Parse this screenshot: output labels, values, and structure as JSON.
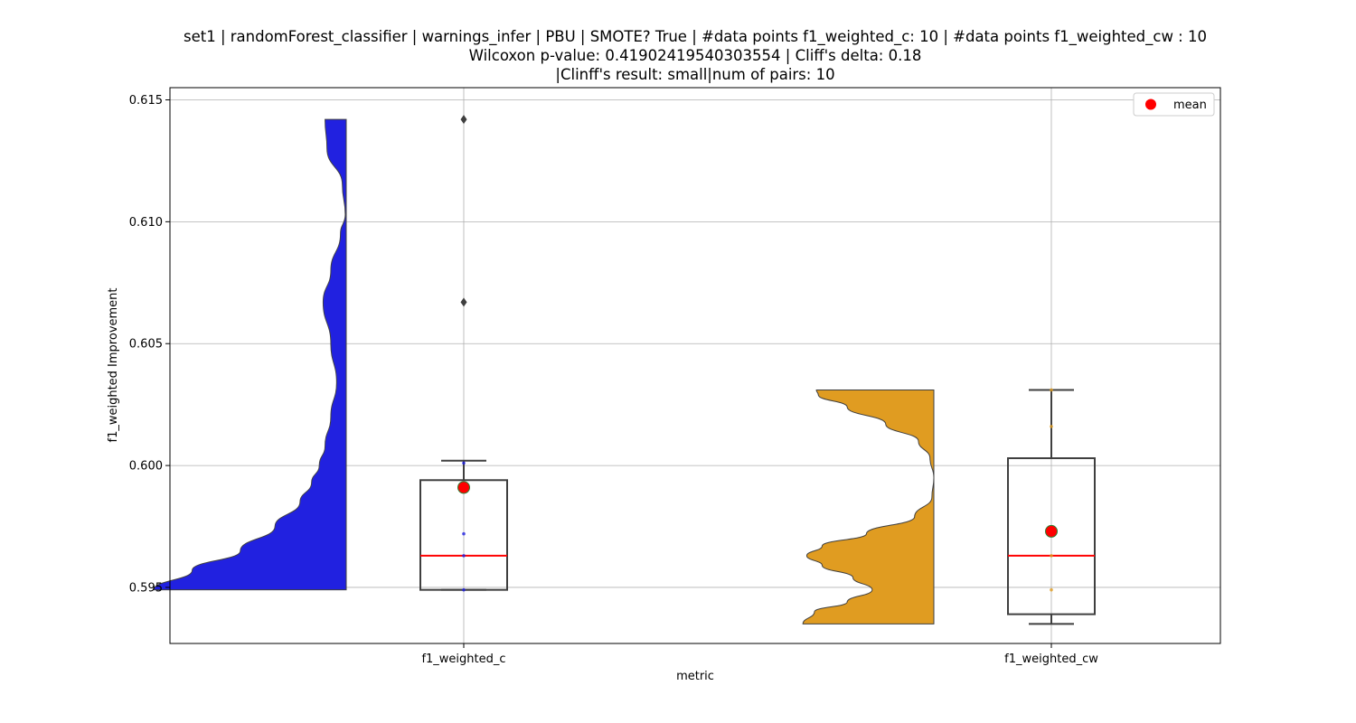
{
  "chart_data": {
    "type": "violin-box",
    "title_lines": [
      "set1 | randomForest_classifier | warnings_infer | PBU | SMOTE? True | #data points f1_weighted_c: 10 | #data points f1_weighted_cw : 10",
      "Wilcoxon p-value: 0.41902419540303554 | Cliff's delta: 0.18",
      "|Clinff's result: small|num of pairs: 10"
    ],
    "xlabel": "metric",
    "ylabel": "f1_weighted Improvement",
    "ylim": [
      0.5927,
      0.6155
    ],
    "yticks": [
      "0.595",
      "0.600",
      "0.605",
      "0.610",
      "0.615"
    ],
    "ytick_values": [
      0.595,
      0.6,
      0.605,
      0.61,
      0.615
    ],
    "grid": true,
    "legend": {
      "position": "top-right",
      "entries": [
        {
          "label": "mean",
          "color": "#ff0000"
        }
      ]
    },
    "categories": [
      "f1_weighted_c",
      "f1_weighted_cw"
    ],
    "series": [
      {
        "category": "f1_weighted_c",
        "violin_color": "#2121e0",
        "violin_range": [
          0.5949,
          0.6142
        ],
        "violin_density": [
          [
            0.5949,
            1.0
          ],
          [
            0.5957,
            0.8
          ],
          [
            0.5965,
            0.55
          ],
          [
            0.5975,
            0.37
          ],
          [
            0.5985,
            0.24
          ],
          [
            0.5993,
            0.18
          ],
          [
            0.6,
            0.14
          ],
          [
            0.6008,
            0.11
          ],
          [
            0.602,
            0.08
          ],
          [
            0.6034,
            0.05
          ],
          [
            0.605,
            0.08
          ],
          [
            0.6067,
            0.12
          ],
          [
            0.608,
            0.08
          ],
          [
            0.6095,
            0.03
          ],
          [
            0.6103,
            0.005
          ],
          [
            0.6115,
            0.02
          ],
          [
            0.613,
            0.1
          ],
          [
            0.6142,
            0.11
          ]
        ],
        "box": {
          "whisker_low": 0.5949,
          "q1": 0.5949,
          "median": 0.5963,
          "q3": 0.5994,
          "whisker_high": 0.6002
        },
        "outliers": [
          0.6067,
          0.6142
        ],
        "mean": 0.5991,
        "points": [
          0.5949,
          0.5963,
          0.5972,
          0.6001
        ]
      },
      {
        "category": "f1_weighted_cw",
        "violin_color": "#e09c21",
        "violin_range": [
          0.5935,
          0.6031
        ],
        "violin_density": [
          [
            0.5935,
            0.68
          ],
          [
            0.594,
            0.62
          ],
          [
            0.5944,
            0.45
          ],
          [
            0.5949,
            0.32
          ],
          [
            0.5954,
            0.42
          ],
          [
            0.5959,
            0.58
          ],
          [
            0.5963,
            0.66
          ],
          [
            0.5967,
            0.58
          ],
          [
            0.5972,
            0.35
          ],
          [
            0.5979,
            0.1
          ],
          [
            0.5987,
            0.01
          ],
          [
            0.5995,
            0.0
          ],
          [
            0.6003,
            0.02
          ],
          [
            0.601,
            0.08
          ],
          [
            0.6017,
            0.25
          ],
          [
            0.6024,
            0.45
          ],
          [
            0.6029,
            0.6
          ],
          [
            0.6031,
            0.61
          ]
        ],
        "box": {
          "whisker_low": 0.5935,
          "q1": 0.5939,
          "median": 0.5963,
          "q3": 0.6003,
          "whisker_high": 0.6031
        },
        "outliers": [],
        "mean": 0.5973,
        "points": [
          0.5949,
          0.5963,
          0.6016,
          0.6031
        ]
      }
    ]
  }
}
